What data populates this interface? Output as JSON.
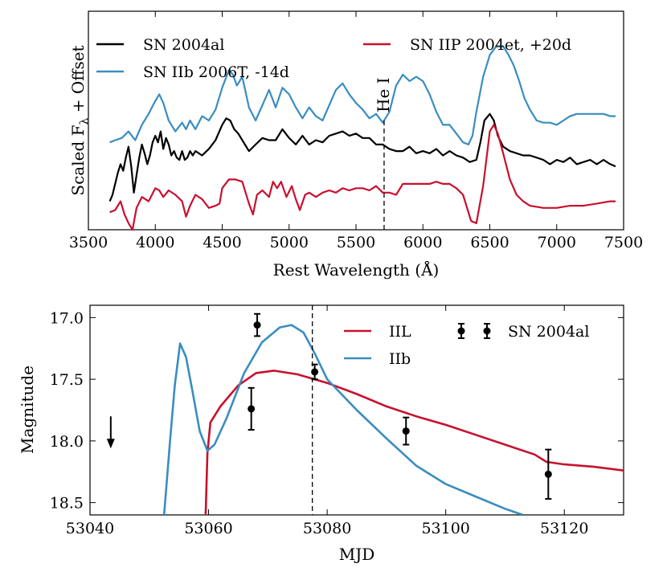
{
  "colors": {
    "black": "#000000",
    "blue": "#3a8dc0",
    "red": "#c8102e"
  },
  "chart_data": [
    {
      "type": "line",
      "title": "",
      "xlabel": "Rest Wavelength (Å)",
      "ylabel_main": "Scaled F",
      "ylabel_sub": "λ",
      "ylabel_rest": " + Offset",
      "xlim": [
        3500,
        7500
      ],
      "ylim": [
        0,
        10
      ],
      "xticks": [
        3500,
        4000,
        4500,
        5000,
        5500,
        6000,
        6500,
        7000,
        7500
      ],
      "yticks_shown": false,
      "annotation": {
        "text": "He I",
        "x": 5710
      },
      "series": [
        {
          "name": "SN 2004al",
          "color": "black",
          "x": [
            3660,
            3680,
            3700,
            3720,
            3740,
            3760,
            3780,
            3800,
            3820,
            3840,
            3860,
            3880,
            3900,
            3920,
            3940,
            3960,
            3980,
            4000,
            4020,
            4040,
            4060,
            4080,
            4100,
            4120,
            4140,
            4160,
            4180,
            4200,
            4220,
            4240,
            4260,
            4280,
            4300,
            4350,
            4400,
            4450,
            4500,
            4530,
            4560,
            4590,
            4620,
            4650,
            4700,
            4750,
            4800,
            4850,
            4900,
            4950,
            5000,
            5050,
            5100,
            5150,
            5200,
            5250,
            5300,
            5350,
            5400,
            5450,
            5500,
            5550,
            5600,
            5650,
            5700,
            5750,
            5800,
            5850,
            5900,
            5950,
            6000,
            6050,
            6100,
            6150,
            6200,
            6250,
            6300,
            6350,
            6400,
            6430,
            6460,
            6500,
            6530,
            6560,
            6600,
            6650,
            6700,
            6750,
            6800,
            6850,
            6900,
            6950,
            7000,
            7050,
            7100,
            7150,
            7200,
            7250,
            7300,
            7350,
            7400,
            7440
          ],
          "y": [
            1.3,
            1.6,
            2.1,
            2.6,
            3.0,
            2.7,
            3.3,
            3.8,
            2.9,
            1.7,
            2.5,
            3.3,
            3.9,
            3.5,
            3.0,
            3.4,
            4.0,
            4.3,
            4.0,
            4.5,
            3.7,
            4.2,
            3.9,
            3.4,
            3.6,
            3.3,
            3.2,
            3.6,
            3.2,
            3.3,
            3.6,
            3.4,
            3.6,
            3.4,
            3.7,
            4.1,
            4.8,
            5.1,
            5.0,
            4.6,
            4.4,
            4.1,
            3.6,
            3.9,
            4.2,
            4.1,
            4.1,
            4.6,
            4.2,
            3.9,
            4.3,
            3.9,
            4.1,
            4.0,
            4.3,
            4.4,
            4.5,
            4.3,
            4.4,
            4.2,
            4.2,
            3.9,
            3.9,
            3.7,
            3.6,
            3.6,
            3.8,
            3.5,
            3.6,
            3.5,
            3.7,
            3.4,
            3.6,
            3.4,
            3.3,
            3.1,
            3.2,
            4.0,
            5.0,
            5.3,
            5.0,
            4.3,
            3.8,
            3.6,
            3.5,
            3.4,
            3.4,
            3.3,
            3.2,
            3.0,
            3.2,
            3.1,
            3.3,
            3.0,
            3.1,
            3.2,
            3.0,
            3.2,
            3.0,
            2.9
          ]
        },
        {
          "name": "SN IIb 2006T, -14d",
          "color": "blue",
          "x": [
            3660,
            3700,
            3750,
            3800,
            3850,
            3900,
            3950,
            4000,
            4030,
            4060,
            4100,
            4150,
            4200,
            4230,
            4260,
            4300,
            4350,
            4400,
            4450,
            4500,
            4550,
            4580,
            4610,
            4650,
            4700,
            4750,
            4800,
            4850,
            4900,
            4950,
            5000,
            5050,
            5100,
            5150,
            5200,
            5250,
            5300,
            5350,
            5400,
            5450,
            5500,
            5550,
            5600,
            5650,
            5700,
            5750,
            5800,
            5850,
            5900,
            5950,
            6000,
            6050,
            6100,
            6150,
            6200,
            6250,
            6300,
            6340,
            6370,
            6400,
            6450,
            6500,
            6550,
            6600,
            6640,
            6680,
            6720,
            6760,
            6800,
            6850,
            6900,
            6950,
            7000,
            7050,
            7100,
            7150,
            7200,
            7250,
            7300,
            7350,
            7400,
            7440
          ],
          "y": [
            4.0,
            4.1,
            4.2,
            4.5,
            4.1,
            4.8,
            5.3,
            5.9,
            6.2,
            5.8,
            5.0,
            4.5,
            4.9,
            4.6,
            5.0,
            4.6,
            5.2,
            5.0,
            5.5,
            6.5,
            7.3,
            7.1,
            6.6,
            7.0,
            5.6,
            5.0,
            5.7,
            6.4,
            5.6,
            6.5,
            6.2,
            5.6,
            5.1,
            5.6,
            5.2,
            5.0,
            5.7,
            6.4,
            6.7,
            6.2,
            5.8,
            5.5,
            5.1,
            5.3,
            4.9,
            5.4,
            6.6,
            7.1,
            6.8,
            7.0,
            6.8,
            6.2,
            5.4,
            4.8,
            4.8,
            4.4,
            4.0,
            3.9,
            4.3,
            5.4,
            7.0,
            8.0,
            8.4,
            8.4,
            8.0,
            7.5,
            6.8,
            6.0,
            5.5,
            5.0,
            4.9,
            4.9,
            4.8,
            5.0,
            5.2,
            5.3,
            5.3,
            5.3,
            5.3,
            5.3,
            5.2,
            5.2
          ]
        },
        {
          "name": "SN IIP 2004et, +20d",
          "color": "red",
          "x": [
            3660,
            3700,
            3740,
            3770,
            3800,
            3830,
            3860,
            3900,
            3950,
            4000,
            4030,
            4060,
            4100,
            4150,
            4200,
            4230,
            4260,
            4300,
            4350,
            4400,
            4450,
            4480,
            4500,
            4550,
            4600,
            4650,
            4700,
            4730,
            4760,
            4800,
            4850,
            4880,
            4910,
            4940,
            4980,
            5020,
            5050,
            5080,
            5120,
            5150,
            5200,
            5250,
            5300,
            5350,
            5400,
            5450,
            5500,
            5550,
            5600,
            5650,
            5700,
            5750,
            5800,
            5850,
            5900,
            5950,
            6000,
            6050,
            6100,
            6150,
            6200,
            6250,
            6300,
            6330,
            6360,
            6400,
            6450,
            6500,
            6530,
            6560,
            6600,
            6650,
            6700,
            6750,
            6800,
            6900,
            7000,
            7100,
            7200,
            7300,
            7400,
            7440
          ],
          "y": [
            0.8,
            0.9,
            1.3,
            0.7,
            0.3,
            0.0,
            1.0,
            1.5,
            1.3,
            1.9,
            1.8,
            1.5,
            1.8,
            1.6,
            1.3,
            0.6,
            1.1,
            1.6,
            1.4,
            1.0,
            1.1,
            1.2,
            1.9,
            2.3,
            2.3,
            2.2,
            1.2,
            0.7,
            1.6,
            1.8,
            1.5,
            2.2,
            1.9,
            2.2,
            1.5,
            2.0,
            1.4,
            0.9,
            1.6,
            1.7,
            1.5,
            1.7,
            1.8,
            1.7,
            1.9,
            1.8,
            1.9,
            1.9,
            1.8,
            2.0,
            1.7,
            1.7,
            1.6,
            2.1,
            2.1,
            2.1,
            2.1,
            2.1,
            2.2,
            2.1,
            2.1,
            1.9,
            1.6,
            1.0,
            0.4,
            0.3,
            2.0,
            4.5,
            4.8,
            4.4,
            3.5,
            2.3,
            1.6,
            1.3,
            1.1,
            1.0,
            1.0,
            1.1,
            1.1,
            1.2,
            1.3,
            1.3
          ]
        }
      ]
    },
    {
      "type": "line",
      "title": "",
      "xlabel": "MJD",
      "ylabel": "Magnitude",
      "xlim": [
        53040,
        53130
      ],
      "ylim": [
        18.6,
        16.9
      ],
      "y_inverted": true,
      "xticks": [
        53040,
        53060,
        53080,
        53100,
        53120
      ],
      "yticks": [
        17.0,
        17.5,
        18.0,
        18.5
      ],
      "ytick_labels": [
        "17.0",
        "17.5",
        "18.0",
        "18.5"
      ],
      "vline_x": 53077.5,
      "series": [
        {
          "name": "IIL",
          "color": "red",
          "x": [
            53059.5,
            53059.8,
            53060.3,
            53062,
            53065,
            53068,
            53071,
            53075,
            53080,
            53085,
            53090,
            53095,
            53100,
            53105,
            53110,
            53115,
            53117,
            53120,
            53125,
            53130
          ],
          "y": [
            18.6,
            18.1,
            17.85,
            17.72,
            17.55,
            17.45,
            17.43,
            17.46,
            17.53,
            17.62,
            17.72,
            17.8,
            17.87,
            17.95,
            18.03,
            18.11,
            18.17,
            18.19,
            18.21,
            18.24
          ]
        },
        {
          "name": "IIb",
          "color": "blue",
          "x": [
            53052.5,
            53053.5,
            53054.3,
            53055.2,
            53056.2,
            53057.3,
            53058.5,
            53059.8,
            53061,
            53063,
            53066,
            53069,
            53072,
            53074,
            53076,
            53078,
            53080,
            53085,
            53090,
            53095,
            53100,
            53105,
            53110,
            53113
          ],
          "y": [
            18.6,
            18.0,
            17.55,
            17.21,
            17.32,
            17.6,
            17.92,
            18.08,
            18.03,
            17.82,
            17.45,
            17.2,
            17.08,
            17.06,
            17.12,
            17.3,
            17.5,
            17.75,
            17.98,
            18.2,
            18.35,
            18.45,
            18.55,
            18.6
          ]
        },
        {
          "name": "SN 2004al",
          "color": "black",
          "kind": "errorbar",
          "x": [
            53067.2,
            53068.2,
            53077.9,
            53093.3,
            53117.3
          ],
          "y": [
            17.74,
            17.06,
            17.44,
            17.92,
            18.27
          ],
          "yerr": [
            0.17,
            0.09,
            0.06,
            0.11,
            0.2
          ]
        }
      ],
      "upper_limit": {
        "x": 53043.5,
        "y": 17.97
      }
    }
  ]
}
